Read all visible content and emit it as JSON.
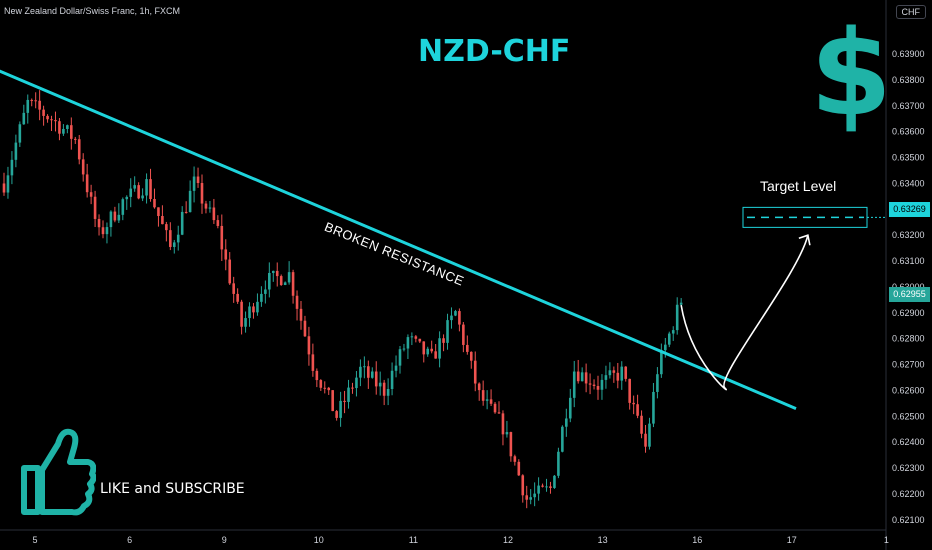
{
  "header": {
    "symbol_title": "New Zealand Dollar/Swiss Franc, 1h, FXCM",
    "currency_badge": "CHF"
  },
  "annotations": {
    "pair_title": "NZD-CHF",
    "dollar_symbol": "$",
    "target_label": "Target Level",
    "resistance_label": "BROKEN RESISTANCE",
    "like_label": "LIKE and SUBSCRIBE"
  },
  "price_labels": {
    "last_price": "0.62955",
    "target_price": "0.63269"
  },
  "colors": {
    "up": "#26a69a",
    "down": "#ef5350",
    "accent": "#1ed4dc",
    "dollar": "#1fb3a7",
    "background": "#000000"
  },
  "icons": {
    "thumbs_up": "thumbs-up-icon",
    "dollar": "dollar-sign-icon"
  },
  "chart_data": {
    "type": "candlestick",
    "x_tick_labels": [
      "5",
      "6",
      "9",
      "10",
      "11",
      "12",
      "13",
      "16",
      "17",
      "1"
    ],
    "y_tick_labels": [
      "0.63900",
      "0.63800",
      "0.63700",
      "0.63600",
      "0.63500",
      "0.63400",
      "0.63300",
      "0.63200",
      "0.63100",
      "0.63000",
      "0.62900",
      "0.62800",
      "0.62700",
      "0.62600",
      "0.62500",
      "0.62400",
      "0.62300",
      "0.62200",
      "0.62100"
    ],
    "ylim": [
      0.6208,
      0.6397
    ],
    "close_path": [
      {
        "bar": 0,
        "price": 0.634
      },
      {
        "bar": 6,
        "price": 0.6371
      },
      {
        "bar": 12,
        "price": 0.6365
      },
      {
        "bar": 18,
        "price": 0.6357
      },
      {
        "bar": 24,
        "price": 0.632
      },
      {
        "bar": 30,
        "price": 0.6333
      },
      {
        "bar": 36,
        "price": 0.634
      },
      {
        "bar": 42,
        "price": 0.6315
      },
      {
        "bar": 48,
        "price": 0.634
      },
      {
        "bar": 54,
        "price": 0.6322
      },
      {
        "bar": 60,
        "price": 0.6285
      },
      {
        "bar": 66,
        "price": 0.6302
      },
      {
        "bar": 72,
        "price": 0.6305
      },
      {
        "bar": 78,
        "price": 0.627
      },
      {
        "bar": 84,
        "price": 0.625
      },
      {
        "bar": 90,
        "price": 0.6268
      },
      {
        "bar": 96,
        "price": 0.626
      },
      {
        "bar": 102,
        "price": 0.628
      },
      {
        "bar": 108,
        "price": 0.6272
      },
      {
        "bar": 114,
        "price": 0.629
      },
      {
        "bar": 120,
        "price": 0.6258
      },
      {
        "bar": 126,
        "price": 0.6246
      },
      {
        "bar": 132,
        "price": 0.6218
      },
      {
        "bar": 138,
        "price": 0.6222
      },
      {
        "bar": 144,
        "price": 0.6268
      },
      {
        "bar": 150,
        "price": 0.6262
      },
      {
        "bar": 156,
        "price": 0.6267
      },
      {
        "bar": 162,
        "price": 0.6238
      },
      {
        "bar": 165,
        "price": 0.6268
      },
      {
        "bar": 171,
        "price": 0.6295
      }
    ],
    "trendline": {
      "from": {
        "bar": -2,
        "price": 0.6384
      },
      "to": {
        "bar": 200,
        "price": 0.6253
      }
    },
    "target_level": 0.63269,
    "projection": [
      {
        "bar": 171,
        "price": 0.6293
      },
      {
        "bar": 182,
        "price": 0.6261
      },
      {
        "bar": 193,
        "price": 0.6273
      },
      {
        "bar": 203,
        "price": 0.632
      }
    ],
    "grid": false
  }
}
